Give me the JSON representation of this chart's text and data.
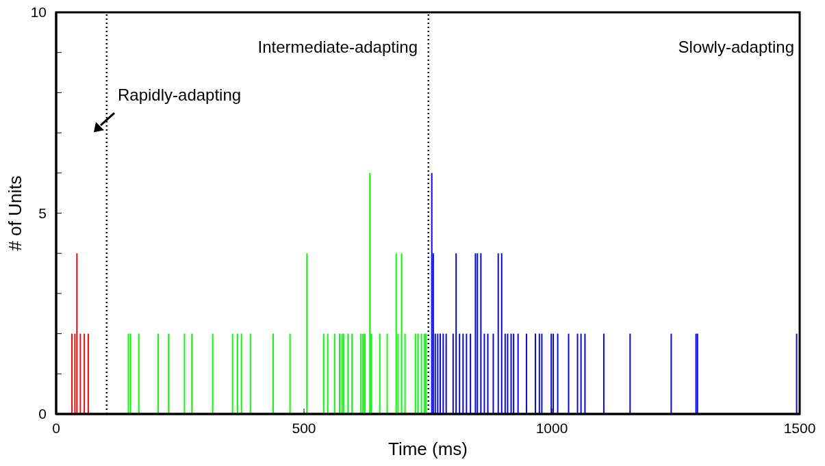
{
  "chart_data": {
    "type": "bar",
    "xlabel": "Time (ms)",
    "ylabel": "# of Units",
    "xlim": [
      0,
      1500
    ],
    "xticks": [
      0,
      500,
      1000,
      1500
    ],
    "ylim": [
      0,
      10
    ],
    "yticks": [
      0,
      {
        "value": 1,
        "label": null
      },
      {
        "value": 2,
        "label": null
      },
      {
        "value": 3,
        "label": null
      },
      {
        "value": 4,
        "label": null
      },
      5,
      {
        "value": 6,
        "label": null
      },
      {
        "value": 7,
        "label": null
      },
      {
        "value": 8,
        "label": null
      },
      {
        "value": 9,
        "label": null
      },
      10
    ],
    "series": [
      {
        "color": "#ff0000",
        "x": [
          32,
          38,
          42,
          49,
          57,
          65
        ],
        "values": [
          2,
          2,
          4,
          2,
          2,
          2
        ]
      },
      {
        "color": "#00ff00",
        "x": [
          146,
          150,
          167,
          206,
          227,
          259,
          274,
          316,
          356,
          366,
          374,
          392,
          438,
          472,
          506,
          540,
          548,
          562,
          572,
          577,
          580,
          589,
          597,
          615,
          619,
          623,
          633,
          636,
          653,
          668,
          686,
          690,
          697,
          704,
          725,
          730,
          737,
          743,
          746
        ],
        "values": [
          2,
          2,
          2,
          2,
          2,
          2,
          2,
          2,
          2,
          2,
          2,
          2,
          2,
          2,
          4,
          2,
          2,
          2,
          2,
          2,
          2,
          2,
          2,
          2,
          2,
          2,
          6,
          2,
          2,
          2,
          4,
          2,
          4,
          2,
          2,
          2,
          2,
          2,
          2
        ]
      },
      {
        "color": "#0000ff",
        "x": [
          758,
          761,
          765,
          770,
          775,
          781,
          787,
          801,
          807,
          814,
          821,
          828,
          836,
          846,
          850,
          857,
          864,
          871,
          882,
          892,
          899,
          906,
          911,
          918,
          923,
          932,
          949,
          967,
          975,
          980,
          999,
          1003,
          1012,
          1034,
          1052,
          1059,
          1067,
          1105,
          1158,
          1241,
          1291,
          1294,
          1494
        ],
        "values": [
          6,
          4,
          2,
          2,
          2,
          2,
          2,
          2,
          4,
          2,
          2,
          2,
          2,
          4,
          4,
          4,
          2,
          2,
          2,
          4,
          4,
          2,
          2,
          2,
          2,
          2,
          2,
          2,
          2,
          2,
          2,
          2,
          2,
          2,
          2,
          2,
          2,
          2,
          2,
          2,
          2,
          2,
          2
        ]
      }
    ],
    "ref_lines": [
      {
        "axis": "x",
        "value": 102,
        "color": "#000000",
        "line_style": "dotted"
      },
      {
        "axis": "x",
        "value": 751,
        "color": "#000000",
        "line_style": "dotted"
      }
    ],
    "annotations": [
      "Rapidly-adapting",
      "Intermediate-adapting",
      "Slowly-adapting"
    ]
  }
}
